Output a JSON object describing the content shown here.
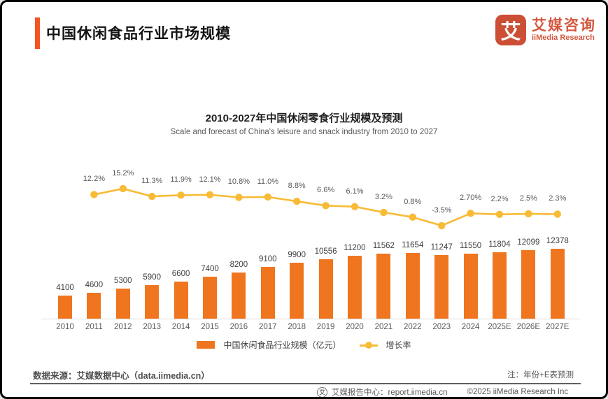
{
  "header": {
    "title": "中国休闲食品行业市场规模",
    "logo": {
      "mark": "艾",
      "name_cn": "艾媒咨询",
      "name_en": "iiMedia Research"
    }
  },
  "chart_data": {
    "type": "bar",
    "title": "2010-2027年中国休闲零食行业规模及预测",
    "subtitle": "Scale and forecast of China's leisure and snack industry from 2010 to 2027",
    "categories": [
      "2010",
      "2011",
      "2012",
      "2013",
      "2014",
      "2015",
      "2016",
      "2017",
      "2018",
      "2019",
      "2020",
      "2021",
      "2022",
      "2023",
      "2024",
      "2025E",
      "2026E",
      "2027E"
    ],
    "series": [
      {
        "name": "中国休闲食品行业规模（亿元）",
        "type": "bar",
        "color": "#F0751F",
        "values": [
          4100,
          4600,
          5300,
          5900,
          6600,
          7400,
          8200,
          9100,
          9900,
          10556,
          11200,
          11562,
          11654,
          11247,
          11550,
          11804,
          12099,
          12378
        ]
      },
      {
        "name": "增长率",
        "type": "line",
        "color": "#F8BB35",
        "values": [
          null,
          12.2,
          15.2,
          11.3,
          11.9,
          12.1,
          10.8,
          11.0,
          8.8,
          6.6,
          6.1,
          3.2,
          0.8,
          -3.5,
          2.7,
          2.2,
          2.5,
          2.3
        ],
        "labels": [
          "",
          "12.2%",
          "15.2%",
          "11.3%",
          "11.9%",
          "12.1%",
          "10.8%",
          "11.0%",
          "8.8%",
          "6.6%",
          "6.1%",
          "3.2%",
          "0.8%",
          "-3.5%",
          "2.70%",
          "2.2%",
          "2.5%",
          "2.3%"
        ]
      }
    ],
    "ylim": [
      0,
      12378
    ],
    "line_ylim_pct": [
      -3.5,
      15.2
    ],
    "grid": false,
    "legend_position": "bottom"
  },
  "footnotes": {
    "source": "数据来源：艾媒数据中心（data.iimedia.cn）",
    "note": "注：年份+E表预测"
  },
  "footer": {
    "icon_glyph": "艾",
    "report_center": "艾媒报告中心：report.iimedia.cn",
    "copyright": "©2025  iiMedia Research  Inc"
  }
}
